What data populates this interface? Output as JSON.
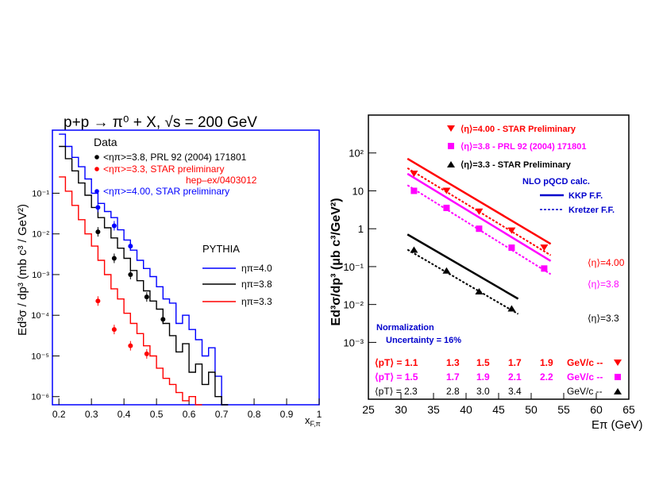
{
  "colors": {
    "black": "#000000",
    "red": "#ff0000",
    "blue": "#0000ff",
    "magenta": "#ff00ff",
    "navy": "#0000cc",
    "boldred": "#ff0000"
  },
  "chart_data": [
    {
      "type": "line",
      "title": "p+p → π⁰ + X, √s = 200 GeV",
      "xlabel": "x",
      "xlabel_sub": "F,π",
      "ylabel": "Ed³σ / dp³ (mb c³ / GeV²)",
      "xlim": [
        0.18,
        1.0
      ],
      "ylim_log10": [
        -6.2,
        0.55
      ],
      "x_ticks": [
        "0.2",
        "0.3",
        "0.4",
        "0.5",
        "0.6",
        "0.7",
        "0.8",
        "0.9",
        "1"
      ],
      "x_tick_values": [
        0.2,
        0.3,
        0.4,
        0.5,
        0.6,
        0.7,
        0.8,
        0.9,
        1.0
      ],
      "y_ticks": [
        "10⁻¹",
        "10⁻²",
        "10⁻³",
        "10⁻⁴",
        "10⁻⁵",
        "10⁻⁶"
      ],
      "y_tick_exponents": [
        -1,
        -2,
        -3,
        -4,
        -5,
        -6
      ],
      "legend_data_title": "Data",
      "legend_data": [
        {
          "label": "<ηπ>=3.8, PRL 92 (2004) 171801",
          "color": "#000000"
        },
        {
          "label": "<ηπ>=3.3, STAR preliminary",
          "label2": "hep–ex/0403012",
          "color": "#ff0000"
        },
        {
          "label": "<ηπ>=4.00, STAR preliminary",
          "color": "#0000ff"
        }
      ],
      "legend_mc_title": "PYTHIA",
      "legend_mc": [
        {
          "label": "ηπ=4.0",
          "color": "#0000ff"
        },
        {
          "label": "ηπ=3.8",
          "color": "#000000"
        },
        {
          "label": "ηπ=3.3",
          "color": "#ff0000"
        }
      ],
      "series": [
        {
          "name": "PYTHIA η=4.0",
          "color": "#0000ff",
          "kind": "hist",
          "x": [
            0.2,
            0.22,
            0.24,
            0.26,
            0.28,
            0.3,
            0.32,
            0.34,
            0.36,
            0.38,
            0.4,
            0.42,
            0.44,
            0.46,
            0.48,
            0.5,
            0.52,
            0.54,
            0.56,
            0.58,
            0.6,
            0.62,
            0.64,
            0.66,
            0.68,
            0.7
          ],
          "log10y": [
            0.45,
            0.15,
            -0.12,
            -0.35,
            -0.65,
            -1.0,
            -1.25,
            -1.45,
            -1.6,
            -1.9,
            -2.15,
            -2.4,
            -2.65,
            -2.85,
            -3.05,
            -3.3,
            -3.6,
            -3.7,
            -4.2,
            -4.0,
            -4.35,
            -4.6,
            -5.0,
            -4.8,
            -5.5,
            -6.2
          ]
        },
        {
          "name": "PYTHIA η=3.8",
          "color": "#000000",
          "kind": "hist",
          "x": [
            0.2,
            0.22,
            0.24,
            0.26,
            0.28,
            0.3,
            0.32,
            0.34,
            0.36,
            0.38,
            0.4,
            0.42,
            0.44,
            0.46,
            0.48,
            0.5,
            0.52,
            0.54,
            0.56,
            0.58,
            0.6,
            0.62,
            0.64,
            0.66,
            0.68,
            0.7
          ],
          "log10y": [
            0.15,
            -0.15,
            -0.45,
            -0.75,
            -1.05,
            -1.35,
            -1.6,
            -1.85,
            -2.1,
            -2.35,
            -2.6,
            -2.9,
            -3.15,
            -3.4,
            -3.65,
            -3.85,
            -4.2,
            -4.5,
            -4.9,
            -4.7,
            -5.4,
            -5.2,
            -5.7,
            -5.4,
            -6.0,
            -6.2
          ]
        },
        {
          "name": "PYTHIA η=3.3",
          "color": "#ff0000",
          "kind": "hist",
          "x": [
            0.2,
            0.22,
            0.24,
            0.26,
            0.28,
            0.3,
            0.32,
            0.34,
            0.36,
            0.38,
            0.4,
            0.42,
            0.44,
            0.46,
            0.48,
            0.5,
            0.52,
            0.54,
            0.56,
            0.58,
            0.6,
            0.62
          ],
          "log10y": [
            -0.6,
            -0.95,
            -1.3,
            -1.65,
            -2.0,
            -2.3,
            -2.65,
            -3.0,
            -3.35,
            -3.6,
            -3.95,
            -4.2,
            -4.45,
            -4.75,
            -5.0,
            -5.3,
            -5.55,
            -5.7,
            -5.9,
            -6.1,
            -6.0,
            -6.2
          ]
        },
        {
          "name": "Data η=3.8",
          "color": "#000000",
          "kind": "points",
          "x": [
            0.32,
            0.37,
            0.42,
            0.47,
            0.52
          ],
          "log10y": [
            -1.95,
            -2.6,
            -3.0,
            -3.55,
            -4.1
          ]
        },
        {
          "name": "Data η=3.3",
          "color": "#ff0000",
          "kind": "points",
          "x": [
            0.32,
            0.37,
            0.42,
            0.47
          ],
          "log10y": [
            -3.65,
            -4.35,
            -4.75,
            -4.95
          ]
        },
        {
          "name": "Data η=4.00",
          "color": "#0000ff",
          "kind": "points",
          "x": [
            0.32,
            0.37,
            0.42
          ],
          "log10y": [
            -1.35,
            -1.8,
            -2.3
          ]
        }
      ]
    },
    {
      "type": "scatter",
      "xlabel": "Eπ (GeV)",
      "ylabel": "Ed³σ/dp³ (μb c³/GeV²)",
      "xlim": [
        25,
        65
      ],
      "ylim_log10": [
        -4.5,
        3.0
      ],
      "x_ticks": [
        "25",
        "30",
        "35",
        "40",
        "45",
        "50",
        "55",
        "60",
        "65"
      ],
      "x_tick_values": [
        25,
        30,
        35,
        40,
        45,
        50,
        55,
        60,
        65
      ],
      "y_ticks": [
        "10²",
        "10",
        "1",
        "10⁻¹",
        "10⁻²",
        "10⁻³"
      ],
      "y_tick_exponents": [
        2,
        1,
        0,
        -1,
        -2,
        -3
      ],
      "legend": [
        {
          "label": "⟨η⟩=4.00 - STAR Preliminary",
          "color": "#ff0000",
          "marker": "triangle-down"
        },
        {
          "label": "⟨η⟩=3.8 - PRL 92 (2004) 171801",
          "color": "#ff00ff",
          "marker": "square"
        },
        {
          "label": "⟨η⟩=3.3 - STAR Preliminary",
          "color": "#000000",
          "marker": "triangle-up"
        }
      ],
      "nlo_title": "NLO pQCD calc.",
      "nlo_kkp": "KKP F.F.",
      "nlo_kretzer": "Kretzer F.F.",
      "eta_labels": [
        {
          "text": "⟨η⟩=4.00",
          "color": "#ff0000"
        },
        {
          "text": "⟨η⟩=3.8",
          "color": "#ff00ff"
        },
        {
          "text": "⟨η⟩=3.3",
          "color": "#000000"
        }
      ],
      "normalization": "Normalization",
      "uncertainty": "Uncertainty = 16%",
      "pt_rows": [
        {
          "label": "⟨pT⟩ = 1.1",
          "vals": [
            "1.3",
            "1.5",
            "1.7",
            "1.9"
          ],
          "unit": "GeV/c --",
          "color": "#ff0000"
        },
        {
          "label": "⟨pT⟩ = 1.5",
          "vals": [
            "1.7",
            "1.9",
            "2.1",
            "2.2"
          ],
          "unit": "GeV/c --",
          "color": "#ff00ff"
        },
        {
          "label": "⟨pT⟩ = 2.3",
          "vals": [
            "2.8",
            "3.0",
            "3.4",
            ""
          ],
          "unit": "GeV/c --",
          "color": "#000000"
        }
      ],
      "series": [
        {
          "name": "η=4.00 data",
          "color": "#ff0000",
          "marker": "triangle-down",
          "x": [
            32,
            37,
            42,
            47,
            52
          ],
          "log10y": [
            1.45,
            1.0,
            0.45,
            -0.05,
            -0.5
          ]
        },
        {
          "name": "η=3.8 data",
          "color": "#ff00ff",
          "marker": "square",
          "x": [
            32,
            37,
            42,
            47,
            52
          ],
          "log10y": [
            1.0,
            0.55,
            0.0,
            -0.5,
            -1.05
          ]
        },
        {
          "name": "η=3.3 data",
          "color": "#000000",
          "marker": "triangle-up",
          "x": [
            32,
            37,
            42,
            47
          ],
          "log10y": [
            -0.55,
            -1.1,
            -1.65,
            -2.1
          ]
        }
      ],
      "curves": [
        {
          "name": "KKP η=4.00",
          "color": "#ff0000",
          "style": "solid",
          "x": [
            31,
            53
          ],
          "log10y": [
            1.85,
            -0.4
          ]
        },
        {
          "name": "Kretzer η=4.00",
          "color": "#ff0000",
          "style": "dashed",
          "x": [
            31,
            53
          ],
          "log10y": [
            1.6,
            -0.7
          ]
        },
        {
          "name": "KKP η=3.8",
          "color": "#ff00ff",
          "style": "solid",
          "x": [
            31,
            53
          ],
          "log10y": [
            1.45,
            -0.85
          ]
        },
        {
          "name": "Kretzer η=3.8",
          "color": "#ff00ff",
          "style": "dashed",
          "x": [
            31,
            53
          ],
          "log10y": [
            1.15,
            -1.2
          ]
        },
        {
          "name": "KKP η=3.3",
          "color": "#000000",
          "style": "solid",
          "x": [
            31,
            48
          ],
          "log10y": [
            -0.15,
            -1.85
          ]
        },
        {
          "name": "Kretzer η=3.3",
          "color": "#000000",
          "style": "dashed",
          "x": [
            31,
            48
          ],
          "log10y": [
            -0.55,
            -2.25
          ]
        }
      ]
    }
  ]
}
